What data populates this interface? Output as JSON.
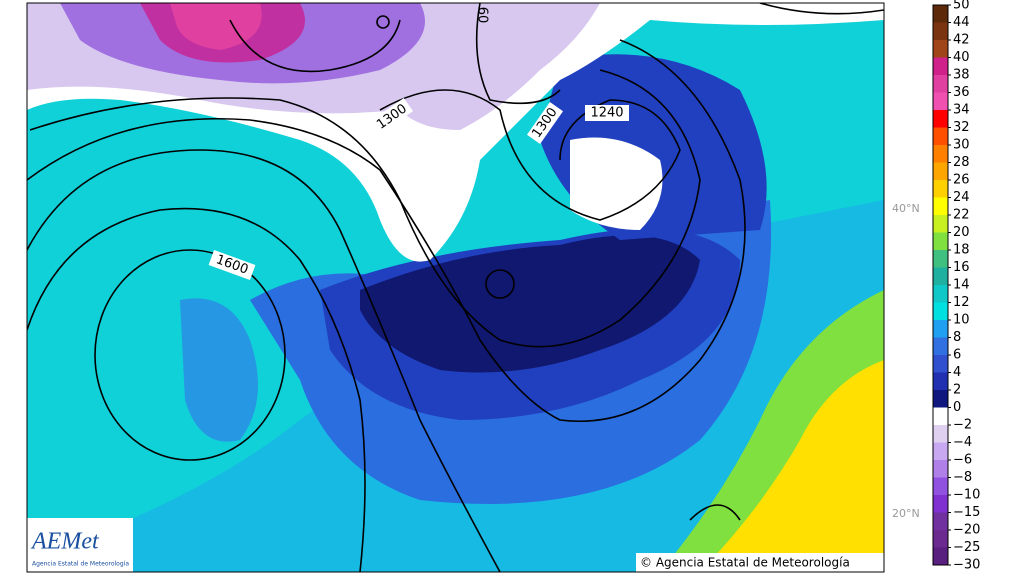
{
  "map": {
    "contour_labels": [
      "1300",
      "1300",
      "1240",
      "1600",
      "60"
    ],
    "latitude_labels": [
      "40°N",
      "20°N"
    ],
    "copyright": "© Agencia Estatal de Meteorología",
    "logo": {
      "name": "AEMet",
      "subtitle": "Agencia Estatal de Meteorología"
    }
  },
  "colorbar": {
    "labels": [
      "50",
      "44",
      "42",
      "40",
      "38",
      "36",
      "34",
      "32",
      "30",
      "28",
      "26",
      "24",
      "22",
      "20",
      "18",
      "16",
      "14",
      "12",
      "10",
      "8",
      "6",
      "4",
      "2",
      "0",
      "−2",
      "−4",
      "−6",
      "−8",
      "−10",
      "−15",
      "−20",
      "−25",
      "−30"
    ],
    "colors": [
      "#5c2a0a",
      "#7b3410",
      "#a0451a",
      "#d0208a",
      "#e040a0",
      "#f050b0",
      "#ff0000",
      "#ff5000",
      "#ff8000",
      "#ffa500",
      "#ffd000",
      "#ffff00",
      "#c8f020",
      "#80e040",
      "#40c080",
      "#20b0a0",
      "#10c8c8",
      "#00e0e0",
      "#20a0f0",
      "#3070e0",
      "#3050d0",
      "#2030b0",
      "#101880",
      "#ffffff",
      "#e0d0f0",
      "#c8a8f0",
      "#b080e8",
      "#9050e0",
      "#8030d0",
      "#7030a0",
      "#6a2a90",
      "#5a2080"
    ]
  }
}
